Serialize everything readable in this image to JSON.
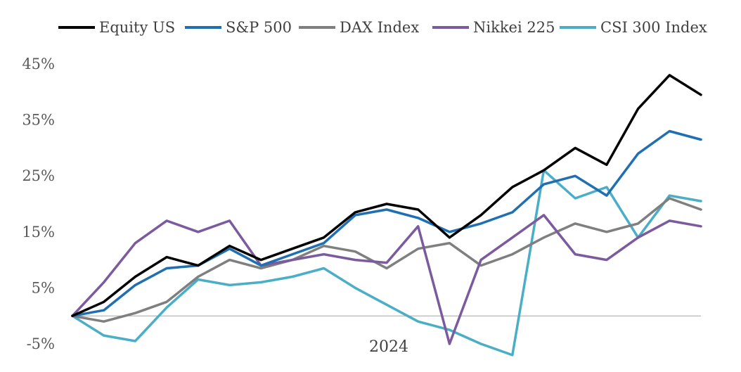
{
  "chart_data": {
    "type": "line",
    "title": "",
    "xlabel": "",
    "ylabel": "",
    "x_axis_label": "2024",
    "ylim": [
      -5,
      45
    ],
    "yticks": [
      -5,
      5,
      15,
      25,
      35,
      45
    ],
    "ytick_labels": [
      "-5%",
      "5%",
      "15%",
      "25%",
      "35%",
      "45%"
    ],
    "grid": false,
    "legend_position": "top",
    "x": [
      0,
      5,
      10,
      15,
      20,
      25,
      30,
      35,
      40,
      45,
      50,
      55,
      60,
      65,
      70,
      75,
      80,
      85,
      90,
      95,
      100
    ],
    "series": [
      {
        "name": "Equity US",
        "color": "#000000",
        "values": [
          0,
          2.5,
          7,
          10.5,
          9,
          12.5,
          10,
          12,
          14,
          18.5,
          20,
          19,
          14,
          18,
          23,
          26,
          30,
          27,
          37,
          43,
          39.5
        ]
      },
      {
        "name": "S&P 500",
        "color": "#1f6fb2",
        "values": [
          0,
          1,
          5.5,
          8.5,
          9,
          12,
          9,
          11,
          13,
          18,
          19,
          17.5,
          15,
          16.5,
          18.5,
          23.5,
          25,
          21.5,
          29,
          33,
          31.5
        ]
      },
      {
        "name": "DAX Index",
        "color": "#7f7f7f",
        "values": [
          0,
          -1,
          0.5,
          2.5,
          7,
          10,
          8.5,
          10,
          12.5,
          11.5,
          8.5,
          12,
          13,
          9,
          11,
          14,
          16.5,
          15,
          16.5,
          21,
          19
        ]
      },
      {
        "name": "Nikkei 225",
        "color": "#7b5a9e",
        "values": [
          0,
          6,
          13,
          17,
          15,
          17,
          9,
          10,
          11,
          10,
          9.5,
          16,
          -5,
          10,
          14,
          18,
          11,
          10,
          14,
          17,
          16
        ]
      },
      {
        "name": "CSI 300 Index",
        "color": "#4aaec6",
        "values": [
          0,
          -3.5,
          -4.5,
          1.5,
          6.5,
          5.5,
          6,
          7,
          8.5,
          5,
          2,
          -1,
          -2.5,
          -5,
          -7,
          26,
          21,
          23,
          14,
          21.5,
          20.5
        ]
      }
    ]
  }
}
